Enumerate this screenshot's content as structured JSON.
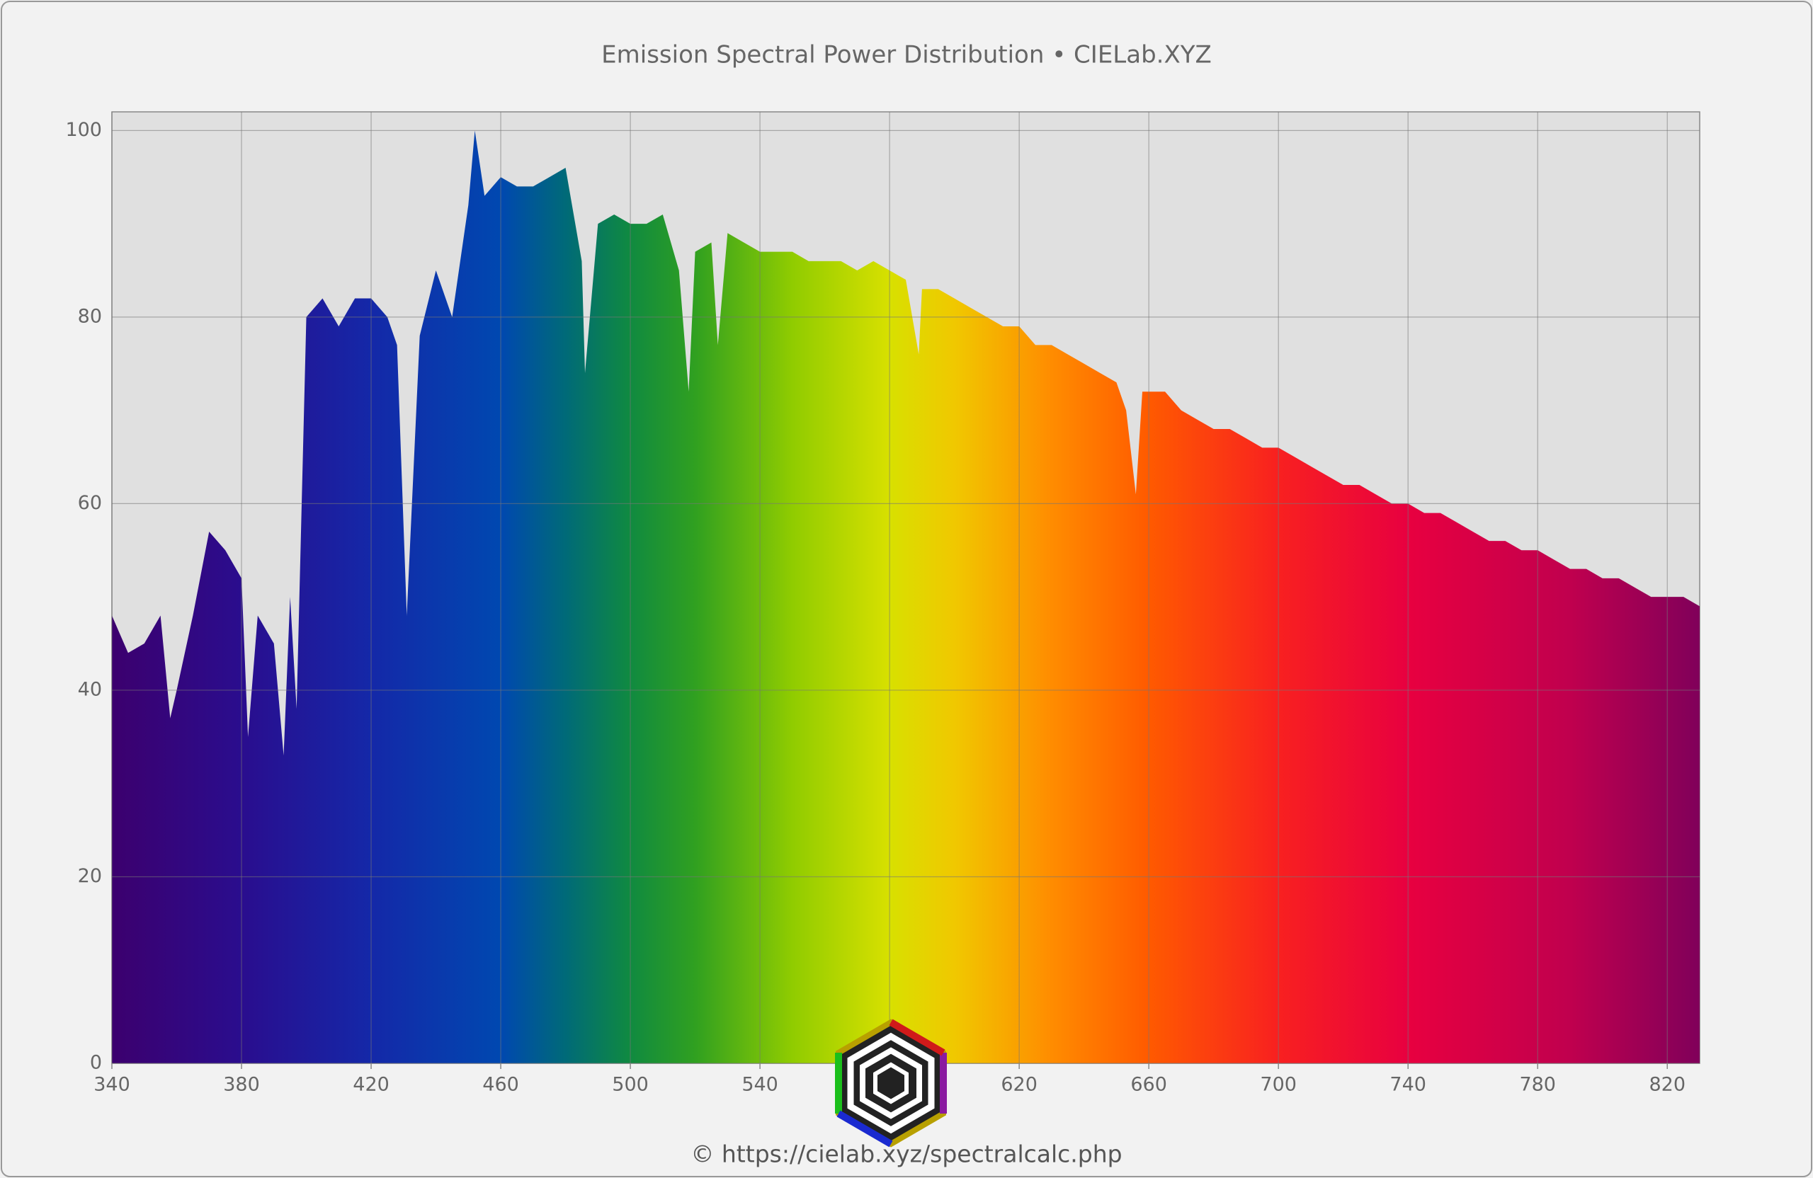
{
  "chart_data": {
    "type": "area",
    "title": "Emission Spectral Power Distribution  •  CIELab.XYZ",
    "x": [
      340,
      345,
      350,
      355,
      358,
      360,
      365,
      370,
      375,
      380,
      382,
      385,
      390,
      393,
      395,
      397,
      400,
      405,
      410,
      415,
      420,
      425,
      428,
      431,
      435,
      440,
      445,
      450,
      452,
      455,
      460,
      465,
      470,
      475,
      480,
      485,
      486,
      490,
      495,
      500,
      505,
      510,
      515,
      518,
      520,
      525,
      527,
      530,
      535,
      540,
      545,
      550,
      555,
      560,
      565,
      570,
      575,
      580,
      585,
      589,
      590,
      595,
      600,
      605,
      610,
      615,
      620,
      625,
      630,
      635,
      640,
      645,
      650,
      653,
      656,
      658,
      660,
      665,
      670,
      675,
      680,
      685,
      690,
      695,
      700,
      705,
      710,
      715,
      720,
      725,
      730,
      735,
      740,
      745,
      750,
      755,
      760,
      765,
      770,
      775,
      780,
      785,
      790,
      795,
      800,
      805,
      810,
      815,
      820,
      825,
      830
    ],
    "values": [
      48,
      44,
      45,
      48,
      37,
      40,
      48,
      57,
      55,
      52,
      35,
      48,
      45,
      33,
      50,
      38,
      80,
      82,
      79,
      82,
      82,
      80,
      77,
      48,
      78,
      85,
      80,
      92,
      100,
      93,
      95,
      94,
      94,
      95,
      96,
      86,
      74,
      90,
      91,
      90,
      90,
      91,
      85,
      72,
      87,
      88,
      77,
      89,
      88,
      87,
      87,
      87,
      86,
      86,
      86,
      85,
      86,
      85,
      84,
      76,
      83,
      83,
      82,
      81,
      80,
      79,
      79,
      77,
      77,
      76,
      75,
      74,
      73,
      70,
      61,
      72,
      72,
      72,
      70,
      69,
      68,
      68,
      67,
      66,
      66,
      65,
      64,
      63,
      62,
      62,
      61,
      60,
      60,
      59,
      59,
      58,
      57,
      56,
      56,
      55,
      55,
      54,
      53,
      53,
      52,
      52,
      51,
      50,
      50,
      50,
      49
    ],
    "xlim": [
      340,
      830
    ],
    "ylim": [
      0,
      102
    ],
    "xticks": [
      340,
      380,
      420,
      460,
      500,
      540,
      580,
      620,
      660,
      700,
      740,
      780,
      820
    ],
    "yticks": [
      0,
      20,
      40,
      60,
      80,
      100
    ],
    "grid": true,
    "gradient": [
      {
        "x": 340,
        "color": "#3c006e"
      },
      {
        "x": 380,
        "color": "#2a0d8e"
      },
      {
        "x": 420,
        "color": "#1428a8"
      },
      {
        "x": 460,
        "color": "#0048b0"
      },
      {
        "x": 480,
        "color": "#006a78"
      },
      {
        "x": 500,
        "color": "#108a40"
      },
      {
        "x": 520,
        "color": "#30a020"
      },
      {
        "x": 550,
        "color": "#90cc00"
      },
      {
        "x": 580,
        "color": "#d8e000"
      },
      {
        "x": 600,
        "color": "#f0c800"
      },
      {
        "x": 630,
        "color": "#ff8c00"
      },
      {
        "x": 660,
        "color": "#ff5a00"
      },
      {
        "x": 700,
        "color": "#f82020"
      },
      {
        "x": 740,
        "color": "#e80040"
      },
      {
        "x": 790,
        "color": "#c0004e"
      },
      {
        "x": 830,
        "color": "#80005a"
      }
    ]
  },
  "footer": "© https://cielab.xyz/spectralcalc.php"
}
